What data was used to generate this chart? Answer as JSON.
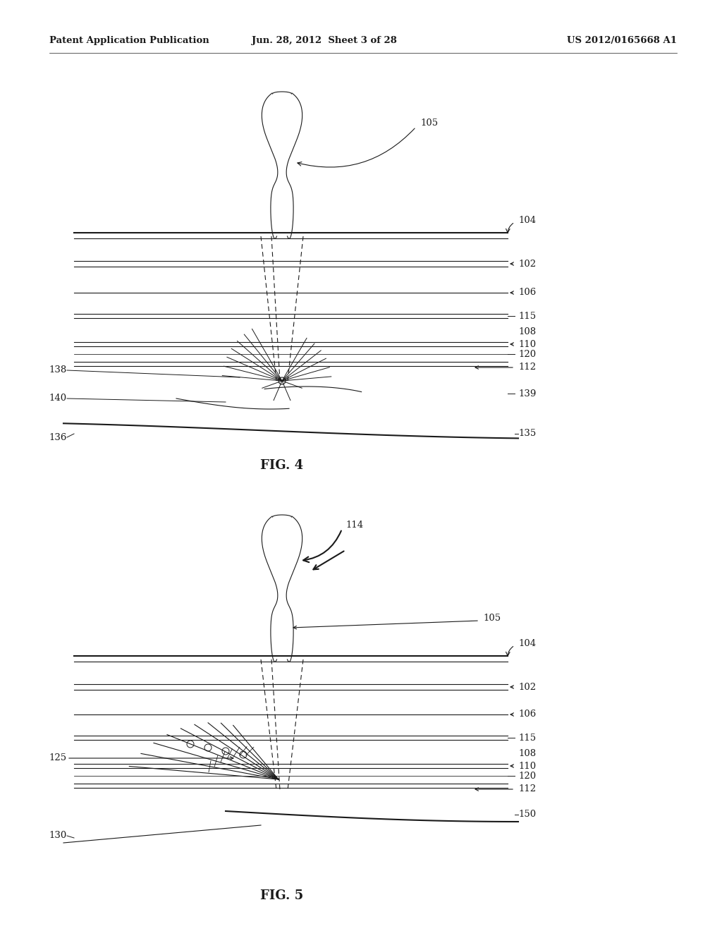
{
  "bg_color": "#ffffff",
  "header_left": "Patent Application Publication",
  "header_center": "Jun. 28, 2012  Sheet 3 of 28",
  "header_right": "US 2012/0165668 A1",
  "fig4_title": "FIG. 4",
  "fig5_title": "FIG. 5"
}
